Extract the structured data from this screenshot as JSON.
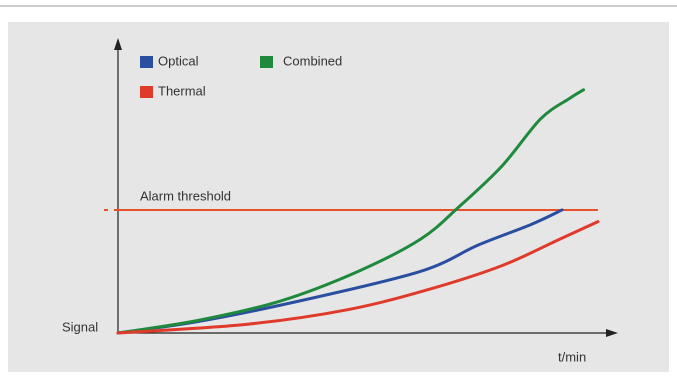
{
  "chart_data": {
    "type": "line",
    "xlabel": "t/min",
    "ylabel": "Signal",
    "xlim": [
      0,
      100
    ],
    "ylim": [
      0,
      100
    ],
    "threshold": {
      "label": "Alarm threshold",
      "value": 42,
      "color": "#e8502a"
    },
    "series": [
      {
        "name": "Optical",
        "color": "#2a4fa0",
        "x": [
          0,
          17,
          38,
          63,
          75,
          86,
          92.5
        ],
        "values": [
          0,
          4,
          11,
          21,
          30,
          37,
          42
        ]
      },
      {
        "name": "Combined",
        "color": "#1f8a3c",
        "x": [
          0,
          17,
          34,
          50,
          63,
          71,
          80,
          88,
          94,
          97
        ],
        "values": [
          0,
          4.4,
          11,
          21,
          32,
          43,
          57,
          73,
          80,
          83
        ]
      },
      {
        "name": "Thermal",
        "color": "#e03a2a",
        "x": [
          0,
          27,
          48,
          65,
          80,
          92,
          100
        ],
        "values": [
          0,
          3,
          8,
          15,
          23,
          32,
          38
        ]
      }
    ]
  }
}
